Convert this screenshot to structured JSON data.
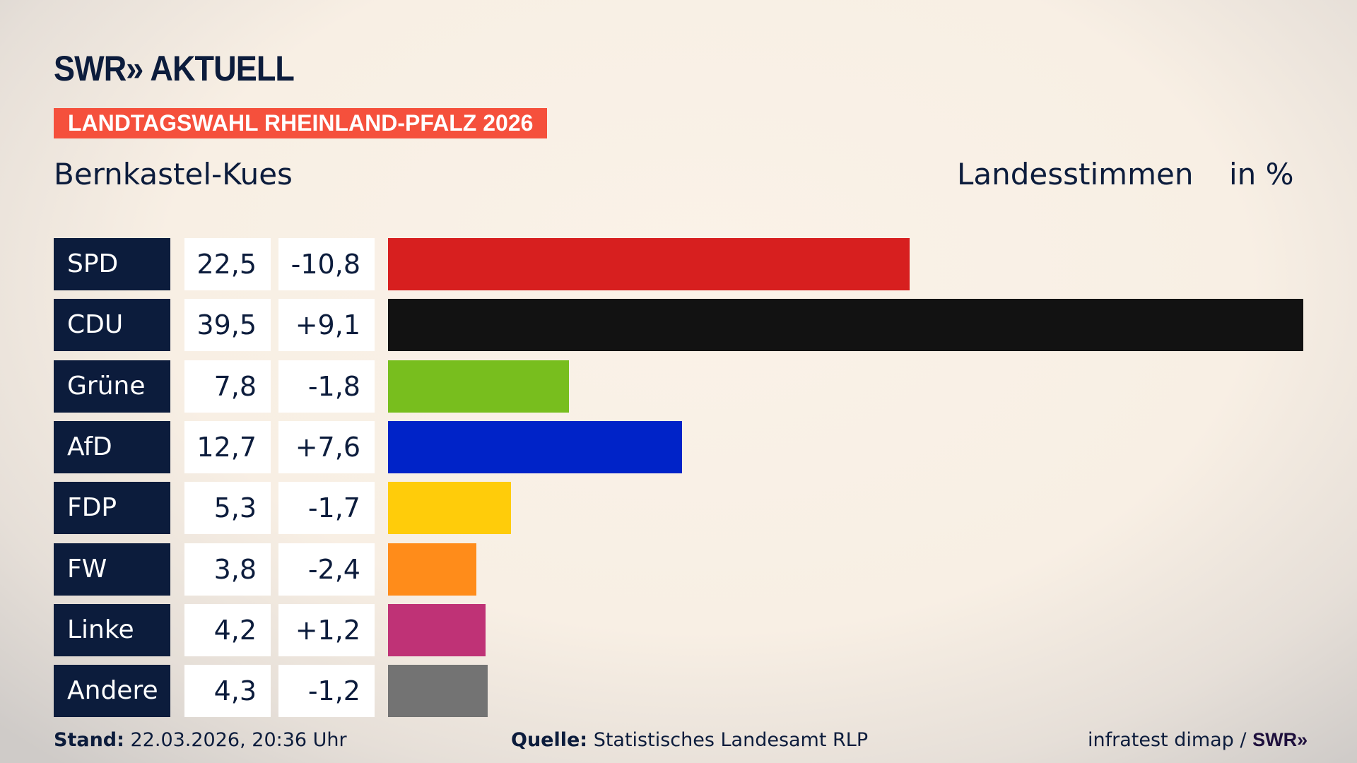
{
  "header": {
    "logo": "SWR» AKTUELL",
    "banner": "LANDTAGSWAHL RHEINLAND-PFALZ 2026",
    "district": "Bernkastel-Kues",
    "vote_type": "Landesstimmen",
    "unit": "in %"
  },
  "chart_data": {
    "type": "bar",
    "orientation": "horizontal",
    "categories": [
      "SPD",
      "CDU",
      "Grüne",
      "AfD",
      "FDP",
      "FW",
      "Linke",
      "Andere"
    ],
    "values": [
      22.5,
      39.5,
      7.8,
      12.7,
      5.3,
      3.8,
      4.2,
      4.3
    ],
    "value_labels": [
      "22,5",
      "39,5",
      "7,8",
      "12,7",
      "5,3",
      "3,8",
      "4,2",
      "4,3"
    ],
    "changes": [
      -10.8,
      9.1,
      -1.8,
      7.6,
      -1.7,
      -2.4,
      1.2,
      -1.2
    ],
    "change_labels": [
      "-10,8",
      "+9,1",
      "-1,8",
      "+7,6",
      "-1,7",
      "-2,4",
      "+1,2",
      "-1,2"
    ],
    "colors": [
      "#d71f1f",
      "#121212",
      "#78be1e",
      "#0023c8",
      "#ffcc0a",
      "#ff8c1a",
      "#bf3276",
      "#737373"
    ],
    "xlim": [
      0,
      39.5
    ]
  },
  "footer": {
    "stand_label": "Stand:",
    "stand_value": " 22.03.2026, 20:36 Uhr",
    "source_label": "Quelle:",
    "source_value": " Statistisches Landesamt RLP",
    "credit": "infratest dimap / ",
    "credit_logo": "SWR»"
  }
}
